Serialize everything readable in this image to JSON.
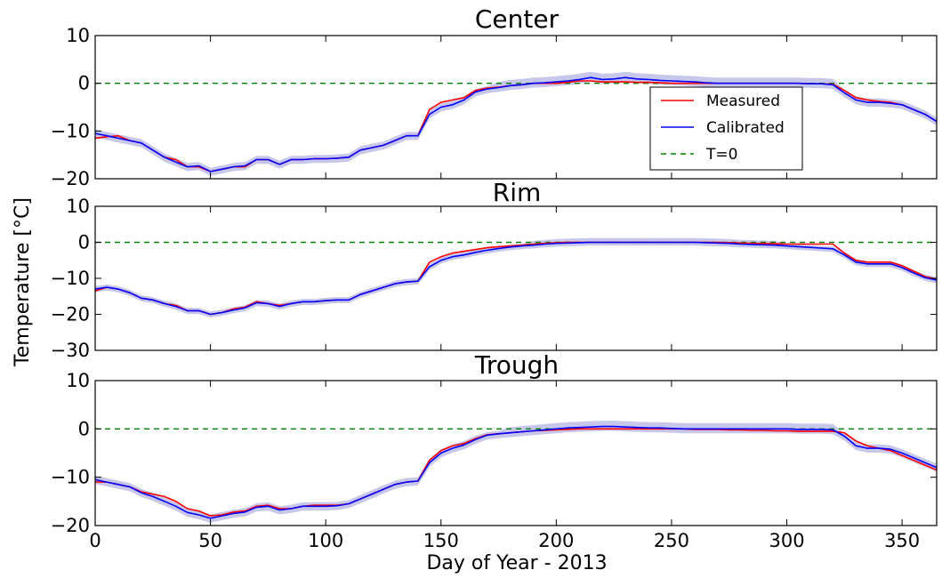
{
  "figure": {
    "xlabel": "Day of Year - 2013",
    "ylabel": "Temperature [°C]"
  },
  "legend": {
    "measured": "Measured",
    "calibrated": "Calibrated",
    "t0": "T=0"
  },
  "colors": {
    "measured": "#ff0000",
    "calibrated": "#0000ff",
    "band": "#b4b4e6",
    "zero": "#008000"
  },
  "chart_data": [
    {
      "type": "line",
      "title": "Center",
      "xlim": [
        0,
        365
      ],
      "ylim": [
        -20,
        10
      ],
      "xticks": [
        0,
        50,
        100,
        150,
        200,
        250,
        300,
        350
      ],
      "yticks": [
        -20,
        -10,
        0,
        10
      ],
      "legend_position": "center-right",
      "series": [
        {
          "name": "Measured",
          "x": [
            0,
            5,
            10,
            15,
            20,
            25,
            30,
            35,
            40,
            45,
            50,
            55,
            60,
            65,
            70,
            75,
            80,
            85,
            90,
            95,
            100,
            105,
            110,
            115,
            120,
            125,
            130,
            135,
            140,
            145,
            150,
            155,
            160,
            165,
            170,
            175,
            180,
            185,
            190,
            195,
            200,
            205,
            210,
            215,
            220,
            225,
            230,
            235,
            240,
            245,
            250,
            255,
            260,
            265,
            270,
            275,
            280,
            285,
            290,
            295,
            300,
            305,
            310,
            315,
            320,
            325,
            330,
            335,
            340,
            345,
            350,
            355,
            360,
            365
          ],
          "y": [
            -11.5,
            -11.2,
            -11,
            -12,
            -12.5,
            -14,
            -15.5,
            -16,
            -17.5,
            -17.5,
            -18.5,
            -18,
            -17.5,
            -17.5,
            -16,
            -16,
            -17,
            -16,
            -16,
            -15.8,
            -15.8,
            -15.7,
            -15.5,
            -14,
            -13.5,
            -13,
            -12,
            -11,
            -11,
            -5.5,
            -4,
            -3.5,
            -3,
            -1.5,
            -1,
            -0.8,
            -0.5,
            -0.3,
            0,
            0,
            0,
            0.2,
            0.5,
            0.5,
            0.3,
            0.3,
            0.3,
            0.2,
            0.2,
            0.1,
            0,
            0,
            0,
            0,
            0,
            0,
            0,
            0,
            0,
            0,
            0,
            0,
            -0.1,
            -0.1,
            -0.2,
            -1.5,
            -3,
            -3.5,
            -3.8,
            -4,
            -4.5,
            -5.5,
            -6.5,
            -8
          ]
        },
        {
          "name": "Calibrated",
          "x": [
            0,
            5,
            10,
            15,
            20,
            25,
            30,
            35,
            40,
            45,
            50,
            55,
            60,
            65,
            70,
            75,
            80,
            85,
            90,
            95,
            100,
            105,
            110,
            115,
            120,
            125,
            130,
            135,
            140,
            145,
            150,
            155,
            160,
            165,
            170,
            175,
            180,
            185,
            190,
            195,
            200,
            205,
            210,
            215,
            220,
            225,
            230,
            235,
            240,
            245,
            250,
            255,
            260,
            265,
            270,
            275,
            280,
            285,
            290,
            295,
            300,
            305,
            310,
            315,
            320,
            325,
            330,
            335,
            340,
            345,
            350,
            355,
            360,
            365
          ],
          "y": [
            -10.5,
            -11,
            -11.5,
            -12,
            -12.5,
            -14,
            -15.5,
            -16.5,
            -17.5,
            -17.3,
            -18.5,
            -18,
            -17.5,
            -17.3,
            -16,
            -16,
            -17,
            -16,
            -16,
            -15.8,
            -15.8,
            -15.7,
            -15.5,
            -14,
            -13.5,
            -13,
            -12,
            -11,
            -11,
            -6.5,
            -5,
            -4.5,
            -3.5,
            -1.8,
            -1.2,
            -0.9,
            -0.5,
            -0.3,
            0,
            0.1,
            0.3,
            0.5,
            0.8,
            1.2,
            0.8,
            0.9,
            1.2,
            0.9,
            0.8,
            0.6,
            0.5,
            0.4,
            0.3,
            0.1,
            0,
            0,
            0,
            0,
            0,
            0,
            0,
            0,
            -0.1,
            -0.1,
            -0.3,
            -2,
            -3.5,
            -4,
            -4,
            -4.2,
            -4.5,
            -5.5,
            -6.5,
            -8
          ]
        }
      ]
    },
    {
      "type": "line",
      "title": "Rim",
      "xlim": [
        0,
        365
      ],
      "ylim": [
        -30,
        10
      ],
      "xticks": [
        0,
        50,
        100,
        150,
        200,
        250,
        300,
        350
      ],
      "yticks": [
        -30,
        -20,
        -10,
        0,
        10
      ],
      "series": [
        {
          "name": "Measured",
          "x": [
            0,
            5,
            10,
            15,
            20,
            25,
            30,
            35,
            40,
            45,
            50,
            55,
            60,
            65,
            70,
            75,
            80,
            85,
            90,
            95,
            100,
            105,
            110,
            115,
            120,
            125,
            130,
            135,
            140,
            145,
            150,
            155,
            160,
            165,
            170,
            175,
            180,
            185,
            190,
            195,
            200,
            205,
            210,
            215,
            220,
            225,
            230,
            235,
            240,
            245,
            250,
            255,
            260,
            265,
            270,
            275,
            280,
            285,
            290,
            295,
            300,
            305,
            310,
            315,
            320,
            325,
            330,
            335,
            340,
            345,
            350,
            355,
            360,
            365
          ],
          "y": [
            -13.5,
            -12.5,
            -13,
            -14,
            -15.5,
            -16,
            -17,
            -17.5,
            -19,
            -19,
            -20,
            -19.5,
            -18.5,
            -18,
            -16.5,
            -17,
            -17.5,
            -17,
            -16.5,
            -16.5,
            -16.2,
            -16,
            -16,
            -14.5,
            -13.5,
            -12.5,
            -11.5,
            -11,
            -10.8,
            -5.5,
            -4,
            -3,
            -2.5,
            -2,
            -1.5,
            -1.2,
            -1,
            -0.8,
            -0.5,
            -0.3,
            -0.1,
            0,
            0,
            0,
            0,
            0,
            0,
            0,
            0,
            0,
            0,
            0,
            0,
            0,
            0,
            -0.1,
            -0.2,
            -0.3,
            -0.3,
            -0.4,
            -0.5,
            -0.5,
            -0.5,
            -0.5,
            -0.5,
            -3,
            -5,
            -5.5,
            -5.5,
            -5.5,
            -6.5,
            -8,
            -9.5,
            -10.2
          ]
        },
        {
          "name": "Calibrated",
          "x": [
            0,
            5,
            10,
            15,
            20,
            25,
            30,
            35,
            40,
            45,
            50,
            55,
            60,
            65,
            70,
            75,
            80,
            85,
            90,
            95,
            100,
            105,
            110,
            115,
            120,
            125,
            130,
            135,
            140,
            145,
            150,
            155,
            160,
            165,
            170,
            175,
            180,
            185,
            190,
            195,
            200,
            205,
            210,
            215,
            220,
            225,
            230,
            235,
            240,
            245,
            250,
            255,
            260,
            265,
            270,
            275,
            280,
            285,
            290,
            295,
            300,
            305,
            310,
            315,
            320,
            325,
            330,
            335,
            340,
            345,
            350,
            355,
            360,
            365
          ],
          "y": [
            -13,
            -12.5,
            -13,
            -14,
            -15.5,
            -16,
            -17,
            -17.8,
            -19,
            -19,
            -20,
            -19.5,
            -18.8,
            -18.2,
            -16.8,
            -17,
            -17.8,
            -17,
            -16.5,
            -16.5,
            -16.2,
            -16,
            -16,
            -14.5,
            -13.5,
            -12.5,
            -11.5,
            -11,
            -10.8,
            -6.8,
            -5,
            -4,
            -3.5,
            -2.8,
            -2.2,
            -1.7,
            -1.3,
            -1,
            -0.8,
            -0.5,
            -0.3,
            -0.2,
            -0.1,
            0,
            0,
            0,
            0,
            0,
            0,
            0,
            0,
            0,
            0,
            -0.1,
            -0.2,
            -0.3,
            -0.5,
            -0.6,
            -0.7,
            -0.8,
            -1,
            -1.2,
            -1.4,
            -1.6,
            -1.8,
            -3.5,
            -5.5,
            -6,
            -6,
            -6,
            -7,
            -8.5,
            -9.8,
            -10.5
          ]
        }
      ]
    },
    {
      "type": "line",
      "title": "Trough",
      "xlim": [
        0,
        365
      ],
      "ylim": [
        -20,
        10
      ],
      "xticks": [
        0,
        50,
        100,
        150,
        200,
        250,
        300,
        350
      ],
      "yticks": [
        -20,
        -10,
        0,
        10
      ],
      "series": [
        {
          "name": "Measured",
          "x": [
            0,
            5,
            10,
            15,
            20,
            25,
            30,
            35,
            40,
            45,
            50,
            55,
            60,
            65,
            70,
            75,
            80,
            85,
            90,
            95,
            100,
            105,
            110,
            115,
            120,
            125,
            130,
            135,
            140,
            145,
            150,
            155,
            160,
            165,
            170,
            175,
            180,
            185,
            190,
            195,
            200,
            205,
            210,
            215,
            220,
            225,
            230,
            235,
            240,
            245,
            250,
            255,
            260,
            265,
            270,
            275,
            280,
            285,
            290,
            295,
            300,
            305,
            310,
            315,
            320,
            325,
            330,
            335,
            340,
            345,
            350,
            355,
            360,
            365
          ],
          "y": [
            -11,
            -11,
            -11.5,
            -12,
            -13,
            -13.5,
            -14,
            -15,
            -16.5,
            -17,
            -18,
            -17.8,
            -17.2,
            -17,
            -16,
            -15.8,
            -16.5,
            -16.5,
            -16,
            -15.8,
            -15.8,
            -15.8,
            -15.5,
            -14.5,
            -13.5,
            -12.5,
            -11.5,
            -11,
            -10.8,
            -6.5,
            -4.5,
            -3.5,
            -3,
            -2,
            -1.2,
            -1,
            -0.8,
            -0.6,
            -0.4,
            -0.3,
            -0.2,
            -0.1,
            0,
            0,
            0,
            0,
            0,
            0,
            0,
            0,
            0,
            0,
            -0.1,
            -0.1,
            -0.1,
            -0.2,
            -0.2,
            -0.3,
            -0.3,
            -0.4,
            -0.4,
            -0.5,
            -0.5,
            -0.5,
            -0.5,
            -0.8,
            -2.5,
            -3.5,
            -4,
            -4.5,
            -5.5,
            -6.5,
            -7.5,
            -8.5
          ]
        },
        {
          "name": "Calibrated",
          "x": [
            0,
            5,
            10,
            15,
            20,
            25,
            30,
            35,
            40,
            45,
            50,
            55,
            60,
            65,
            70,
            75,
            80,
            85,
            90,
            95,
            100,
            105,
            110,
            115,
            120,
            125,
            130,
            135,
            140,
            145,
            150,
            155,
            160,
            165,
            170,
            175,
            180,
            185,
            190,
            195,
            200,
            205,
            210,
            215,
            220,
            225,
            230,
            235,
            240,
            245,
            250,
            255,
            260,
            265,
            270,
            275,
            280,
            285,
            290,
            295,
            300,
            305,
            310,
            315,
            320,
            325,
            330,
            335,
            340,
            345,
            350,
            355,
            360,
            365
          ],
          "y": [
            -10.5,
            -11,
            -11.5,
            -12,
            -13.2,
            -14,
            -15,
            -16,
            -17.3,
            -17.8,
            -18.5,
            -18,
            -17.5,
            -17.2,
            -16.2,
            -16,
            -16.8,
            -16.5,
            -16,
            -16,
            -16,
            -15.9,
            -15.5,
            -14.5,
            -13.5,
            -12.5,
            -11.5,
            -11,
            -10.8,
            -7,
            -5,
            -4,
            -3.3,
            -2.2,
            -1.3,
            -1,
            -0.8,
            -0.6,
            -0.4,
            -0.2,
            0,
            0.2,
            0.3,
            0.4,
            0.5,
            0.5,
            0.4,
            0.3,
            0.2,
            0.2,
            0.1,
            0,
            0,
            0,
            0,
            0,
            0,
            0,
            0,
            0,
            0,
            -0.1,
            -0.1,
            -0.1,
            -0.2,
            -1.5,
            -3.5,
            -4,
            -4,
            -4.2,
            -5,
            -6,
            -7,
            -8
          ]
        }
      ]
    }
  ]
}
